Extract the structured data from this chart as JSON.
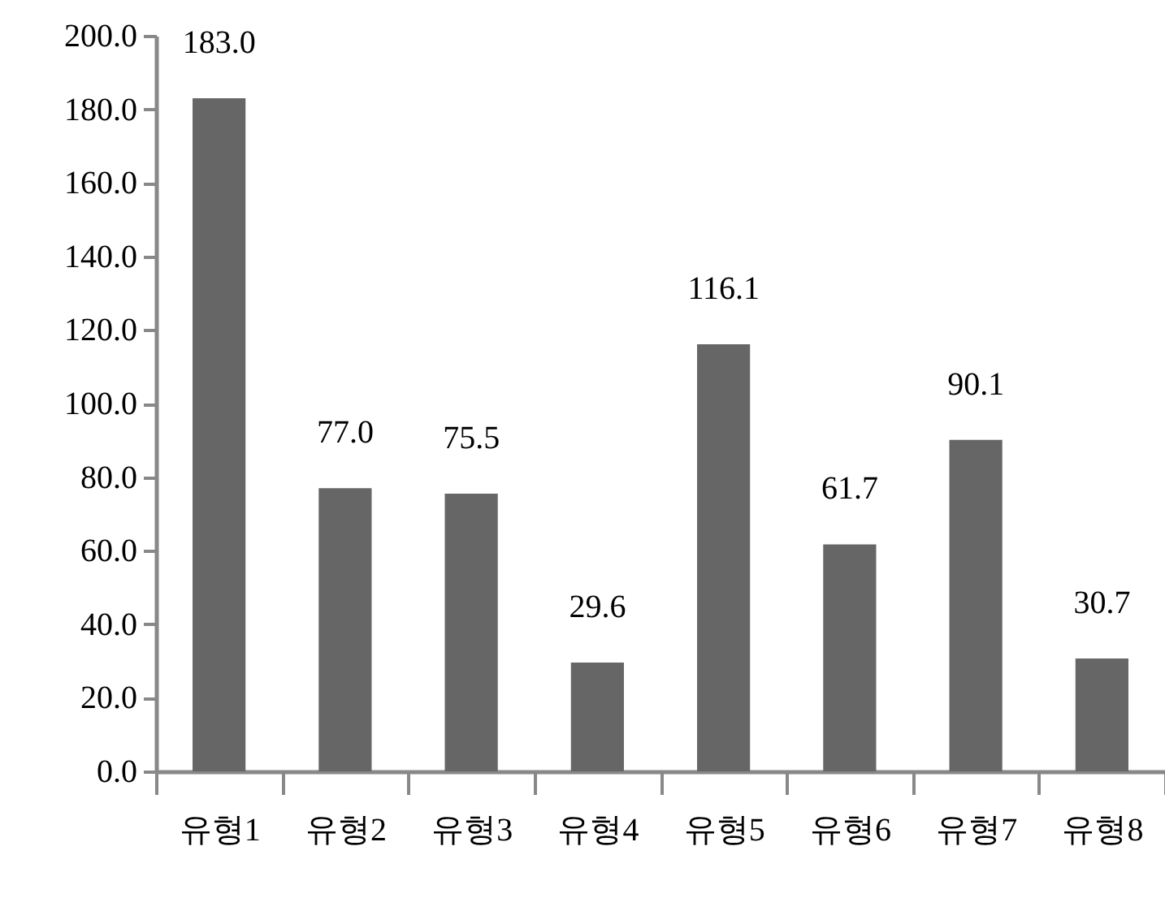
{
  "chart_data": {
    "type": "bar",
    "categories": [
      "유형1",
      "유형2",
      "유형3",
      "유형4",
      "유형5",
      "유형6",
      "유형7",
      "유형8"
    ],
    "values": [
      183.0,
      77.0,
      75.5,
      29.6,
      116.1,
      61.7,
      90.1,
      30.7
    ],
    "color": "#666666",
    "value_labels": [
      "183.0",
      "77.0",
      "75.5",
      "29.6",
      "116.1",
      "61.7",
      "90.1",
      "30.7"
    ],
    "ylim": [
      0,
      200
    ],
    "yticks": [
      {
        "value": 0,
        "label": "0.0"
      },
      {
        "value": 20,
        "label": "20.0"
      },
      {
        "value": 40,
        "label": "40.0"
      },
      {
        "value": 60,
        "label": "60.0"
      },
      {
        "value": 80,
        "label": "80.0"
      },
      {
        "value": 100,
        "label": "100.0"
      },
      {
        "value": 120,
        "label": "120.0"
      },
      {
        "value": 140,
        "label": "140.0"
      },
      {
        "value": 160,
        "label": "160.0"
      },
      {
        "value": 180,
        "label": "180.0"
      },
      {
        "value": 200,
        "label": "200.0"
      }
    ]
  }
}
